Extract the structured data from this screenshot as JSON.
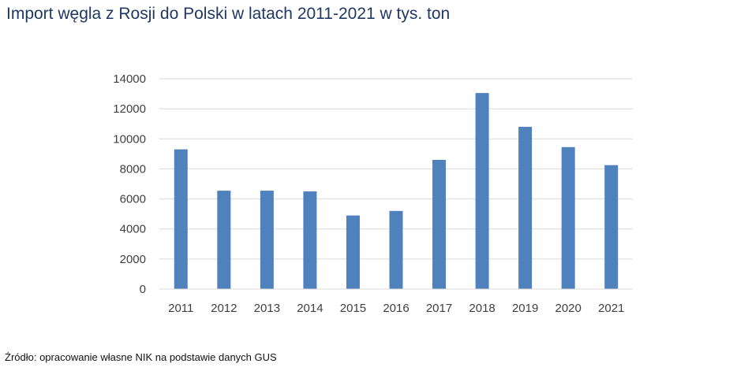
{
  "title": "Import węgla z Rosji do Polski w latach 2011-2021 w tys. ton",
  "source": "Źródło: opracowanie własne NIK na podstawie danych GUS",
  "colors": {
    "title": "#1f3864",
    "bar": "#4f81bd",
    "grid": "#d9d9d9",
    "tick_text": "#404040"
  },
  "chart_data": {
    "type": "bar",
    "title": "Import węgla z Rosji do Polski w latach 2011-2021 w tys. ton",
    "xlabel": "",
    "ylabel": "",
    "categories": [
      "2011",
      "2012",
      "2013",
      "2014",
      "2015",
      "2016",
      "2017",
      "2018",
      "2019",
      "2020",
      "2021"
    ],
    "values": [
      9300,
      6550,
      6550,
      6500,
      4900,
      5200,
      8600,
      13050,
      10800,
      9450,
      8250
    ],
    "ylim": [
      0,
      14000
    ],
    "yticks": [
      0,
      2000,
      4000,
      6000,
      8000,
      10000,
      12000,
      14000
    ],
    "grid": true,
    "legend": "none"
  }
}
